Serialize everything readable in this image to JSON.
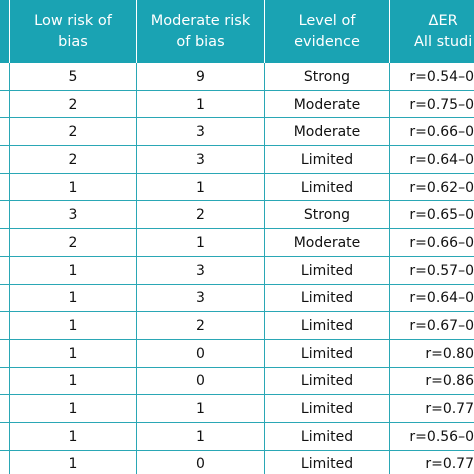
{
  "table": {
    "headers": {
      "low_risk": [
        "Low risk of",
        "bias"
      ],
      "moderate_risk": [
        "Moderate risk",
        "of bias"
      ],
      "level": [
        "Level of",
        "evidence"
      ],
      "er": [
        "ΔER",
        "All studi"
      ]
    },
    "rows": [
      {
        "low": "5",
        "moderate": "9",
        "level": "Strong",
        "er": "r=0.54–0"
      },
      {
        "low": "2",
        "moderate": "1",
        "level": "Moderate",
        "er": "r=0.75–0"
      },
      {
        "low": "2",
        "moderate": "3",
        "level": "Moderate",
        "er": "r=0.66–0"
      },
      {
        "low": "2",
        "moderate": "3",
        "level": "Limited",
        "er": "r=0.64–0"
      },
      {
        "low": "1",
        "moderate": "1",
        "level": "Limited",
        "er": "r=0.62–0"
      },
      {
        "low": "3",
        "moderate": "2",
        "level": "Strong",
        "er": "r=0.65–0"
      },
      {
        "low": "2",
        "moderate": "1",
        "level": "Moderate",
        "er": "r=0.66–0"
      },
      {
        "low": "1",
        "moderate": "3",
        "level": "Limited",
        "er": "r=0.57–0"
      },
      {
        "low": "1",
        "moderate": "3",
        "level": "Limited",
        "er": "r=0.64–0"
      },
      {
        "low": "1",
        "moderate": "2",
        "level": "Limited",
        "er": "r=0.67–0"
      },
      {
        "low": "1",
        "moderate": "0",
        "level": "Limited",
        "er": "r=0.80"
      },
      {
        "low": "1",
        "moderate": "0",
        "level": "Limited",
        "er": "r=0.86"
      },
      {
        "low": "1",
        "moderate": "1",
        "level": "Limited",
        "er": "r=0.77"
      },
      {
        "low": "1",
        "moderate": "1",
        "level": "Limited",
        "er": "r=0.56–0"
      },
      {
        "low": "1",
        "moderate": "0",
        "level": "Limited",
        "er": "r=0.77"
      }
    ]
  },
  "colors": {
    "header_bg": "#1aa3b3",
    "header_text": "#ffffff",
    "grid_line": "#2aa7b5",
    "body_text": "#111111"
  }
}
